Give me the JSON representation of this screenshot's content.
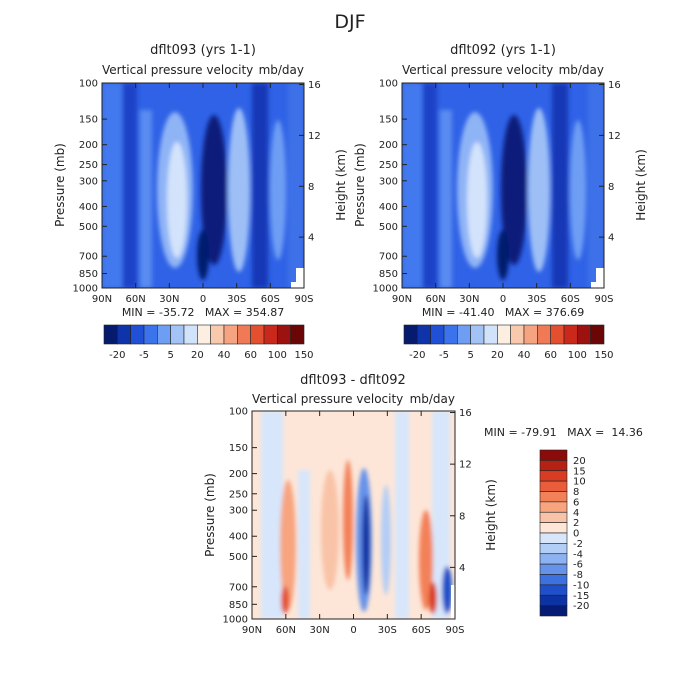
{
  "page_title": "DJF",
  "chart_data": [
    {
      "type": "heatmap",
      "id": "panel_a",
      "title": "dflt093 (yrs 1-1)",
      "subtitle_left": "Vertical pressure velocity",
      "subtitle_right": "mb/day",
      "ylabel": "Pressure (mb)",
      "ylabel_right": "Height (km)",
      "x_ticks": [
        "90N",
        "60N",
        "30N",
        "0",
        "30S",
        "60S",
        "90S"
      ],
      "y_ticks": [
        "100",
        "150",
        "200",
        "250",
        "300",
        "400",
        "500",
        "700",
        "850",
        "1000"
      ],
      "y_ticks_right": [
        "16",
        "12",
        "8",
        "4"
      ],
      "min_max_text": "MIN = -35.72   MAX = 354.87",
      "colorbar_labels": [
        "-20",
        "-5",
        "5",
        "20",
        "40",
        "60",
        "100",
        "150"
      ],
      "colorbar_colors": [
        "#061a6e",
        "#0f33a8",
        "#2050d6",
        "#3a73ec",
        "#6e9ef4",
        "#a3c3f7",
        "#d1e2fb",
        "#fdeee2",
        "#f9c9ae",
        "#f5a381",
        "#ef7a55",
        "#e44f2f",
        "#c9281b",
        "#9c1210",
        "#6b0606"
      ]
    },
    {
      "type": "heatmap",
      "id": "panel_b",
      "title": "dflt092 (yrs 1-1)",
      "subtitle_left": "Vertical pressure velocity",
      "subtitle_right": "mb/day",
      "ylabel": "Pressure (mb)",
      "ylabel_right": "Height (km)",
      "x_ticks": [
        "90N",
        "60N",
        "30N",
        "0",
        "30S",
        "60S",
        "90S"
      ],
      "y_ticks": [
        "100",
        "150",
        "200",
        "250",
        "300",
        "400",
        "500",
        "700",
        "850",
        "1000"
      ],
      "y_ticks_right": [
        "16",
        "12",
        "8",
        "4"
      ],
      "min_max_text": "MIN = -41.40   MAX = 376.69",
      "colorbar_labels": [
        "-20",
        "-5",
        "5",
        "20",
        "40",
        "60",
        "100",
        "150"
      ],
      "colorbar_colors": [
        "#061a6e",
        "#0f33a8",
        "#2050d6",
        "#3a73ec",
        "#6e9ef4",
        "#a3c3f7",
        "#d1e2fb",
        "#fdeee2",
        "#f9c9ae",
        "#f5a381",
        "#ef7a55",
        "#e44f2f",
        "#c9281b",
        "#9c1210",
        "#6b0606"
      ]
    },
    {
      "type": "heatmap",
      "id": "panel_diff",
      "title": "dflt093 - dflt092",
      "subtitle_left": "Vertical pressure velocity",
      "subtitle_right": "mb/day",
      "ylabel": "Pressure (mb)",
      "ylabel_right": "Height (km)",
      "x_ticks": [
        "90N",
        "60N",
        "30N",
        "0",
        "30S",
        "60S",
        "90S"
      ],
      "y_ticks": [
        "100",
        "150",
        "200",
        "250",
        "300",
        "400",
        "500",
        "700",
        "850",
        "1000"
      ],
      "y_ticks_right": [
        "16",
        "12",
        "8",
        "4"
      ],
      "min_max_text": "MIN = -79.91   MAX =  14.36",
      "colorbar_labels": [
        "20",
        "15",
        "10",
        "8",
        "6",
        "4",
        "2",
        "0",
        "-2",
        "-4",
        "-6",
        "-8",
        "-10",
        "-15",
        "-20"
      ],
      "colorbar_colors": [
        "#8b0a0a",
        "#b52214",
        "#d83c22",
        "#ea5d3a",
        "#f38158",
        "#f7a47f",
        "#f9c3a7",
        "#fde6d8",
        "#d7e6fb",
        "#b2cdf6",
        "#8db2f1",
        "#6693ea",
        "#3d71e0",
        "#1f4fc9",
        "#0c32a3",
        "#061c74"
      ]
    }
  ]
}
